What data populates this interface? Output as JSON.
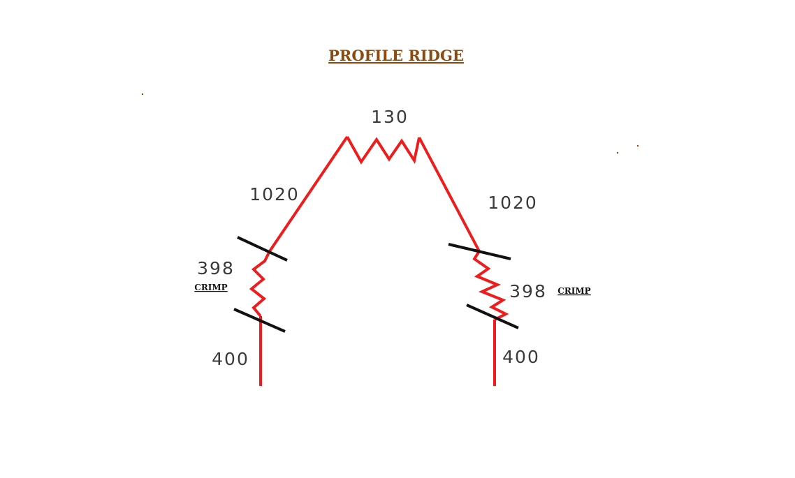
{
  "title": "PROFILE RIDGE",
  "dimensions": {
    "top": "130",
    "upper_left": "1020",
    "upper_right": "1020",
    "crimp_left": "398",
    "crimp_right": "398",
    "bottom_left": "400",
    "bottom_right": "400"
  },
  "crimp_label": "CRIMP",
  "colors": {
    "profile": "#ee1c1c",
    "break_marks": "#111111",
    "title": "#8a4a12",
    "dimension_text": "#3a3a3a"
  }
}
